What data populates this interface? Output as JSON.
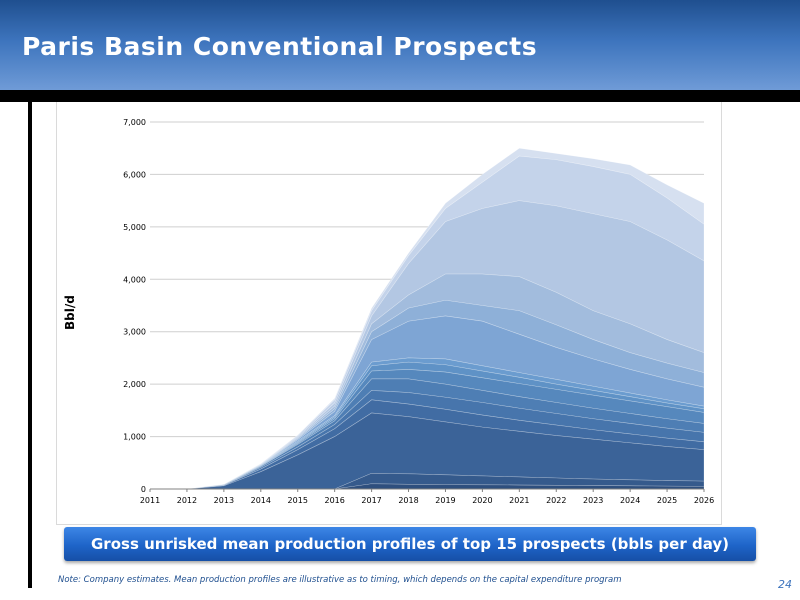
{
  "header": {
    "title": "Paris Basin Conventional Prospects"
  },
  "chart_data": {
    "type": "area",
    "stacked": true,
    "title": "",
    "xlabel": "",
    "ylabel": "Bbl/d",
    "ylim": [
      0,
      7000
    ],
    "yticks": [
      "0",
      "1,000",
      "2,000",
      "3,000",
      "4,000",
      "5,000",
      "6,000",
      "7,000"
    ],
    "yticks_values": [
      0,
      1000,
      2000,
      3000,
      4000,
      5000,
      6000,
      7000
    ],
    "categories": [
      "2011",
      "2012",
      "2013",
      "2014",
      "2015",
      "2016",
      "2017",
      "2018",
      "2019",
      "2020",
      "2021",
      "2022",
      "2023",
      "2024",
      "2025",
      "2026"
    ],
    "grid": true,
    "legend": "none",
    "cumulative_series": [
      {
        "values": [
          0,
          0,
          0,
          0,
          0,
          0,
          100,
          90,
          85,
          80,
          75,
          70,
          65,
          60,
          55,
          50
        ]
      },
      {
        "values": [
          0,
          0,
          0,
          0,
          0,
          0,
          300,
          290,
          270,
          250,
          230,
          210,
          190,
          175,
          160,
          150
        ]
      },
      {
        "values": [
          0,
          0,
          60,
          330,
          650,
          1000,
          1450,
          1380,
          1280,
          1180,
          1100,
          1020,
          950,
          880,
          810,
          750
        ]
      },
      {
        "values": [
          0,
          0,
          70,
          380,
          750,
          1150,
          1700,
          1620,
          1520,
          1410,
          1310,
          1220,
          1130,
          1050,
          970,
          900
        ]
      },
      {
        "values": [
          0,
          0,
          75,
          410,
          800,
          1230,
          1880,
          1840,
          1750,
          1650,
          1540,
          1440,
          1340,
          1250,
          1160,
          1080
        ]
      },
      {
        "values": [
          0,
          0,
          80,
          430,
          850,
          1300,
          2100,
          2100,
          2000,
          1880,
          1760,
          1650,
          1540,
          1440,
          1340,
          1250
        ]
      },
      {
        "values": [
          0,
          0,
          82,
          440,
          870,
          1340,
          2250,
          2280,
          2230,
          2120,
          2010,
          1900,
          1790,
          1680,
          1570,
          1460
        ]
      },
      {
        "values": [
          0,
          0,
          84,
          450,
          890,
          1370,
          2350,
          2420,
          2370,
          2250,
          2130,
          2000,
          1880,
          1760,
          1640,
          1530
        ]
      },
      {
        "values": [
          0,
          0,
          85,
          455,
          910,
          1400,
          2420,
          2500,
          2480,
          2350,
          2220,
          2090,
          1960,
          1830,
          1700,
          1580
        ]
      },
      {
        "values": [
          0,
          0,
          86,
          460,
          940,
          1480,
          2850,
          3200,
          3300,
          3200,
          2950,
          2700,
          2480,
          2280,
          2100,
          1940
        ]
      },
      {
        "values": [
          0,
          0,
          87,
          465,
          960,
          1530,
          3000,
          3450,
          3600,
          3500,
          3400,
          3130,
          2850,
          2600,
          2400,
          2220
        ]
      },
      {
        "values": [
          0,
          0,
          88,
          470,
          980,
          1580,
          3150,
          3700,
          4100,
          4100,
          4050,
          3750,
          3400,
          3150,
          2850,
          2600
        ]
      },
      {
        "values": [
          0,
          0,
          89,
          475,
          1000,
          1640,
          3300,
          4300,
          5100,
          5350,
          5500,
          5400,
          5250,
          5100,
          4750,
          4350
        ]
      },
      {
        "values": [
          0,
          0,
          90,
          480,
          1020,
          1700,
          3400,
          4450,
          5350,
          5850,
          6350,
          6280,
          6150,
          6000,
          5550,
          5050
        ]
      },
      {
        "values": [
          0,
          0,
          90,
          485,
          1030,
          1730,
          3450,
          4500,
          5450,
          6000,
          6500,
          6400,
          6300,
          6180,
          5800,
          5450
        ]
      }
    ],
    "layer_colors": [
      "#2e4f7e",
      "#355a8c",
      "#3b6398",
      "#416ca3",
      "#4775ac",
      "#4e7eb4",
      "#5688bd",
      "#5f92c6",
      "#6b9ccf",
      "#7ea5d4",
      "#8eb0d8",
      "#a2bcdd",
      "#b3c7e3",
      "#c4d3ea",
      "#d6e0f0"
    ]
  },
  "caption": {
    "text": "Gross unrisked mean production profiles of top 15 prospects (bbls per day)"
  },
  "note": {
    "text": "Note:  Company estimates. Mean production profiles are illustrative as to timing, which depends on the capital expenditure program"
  },
  "page": {
    "number": "24"
  }
}
